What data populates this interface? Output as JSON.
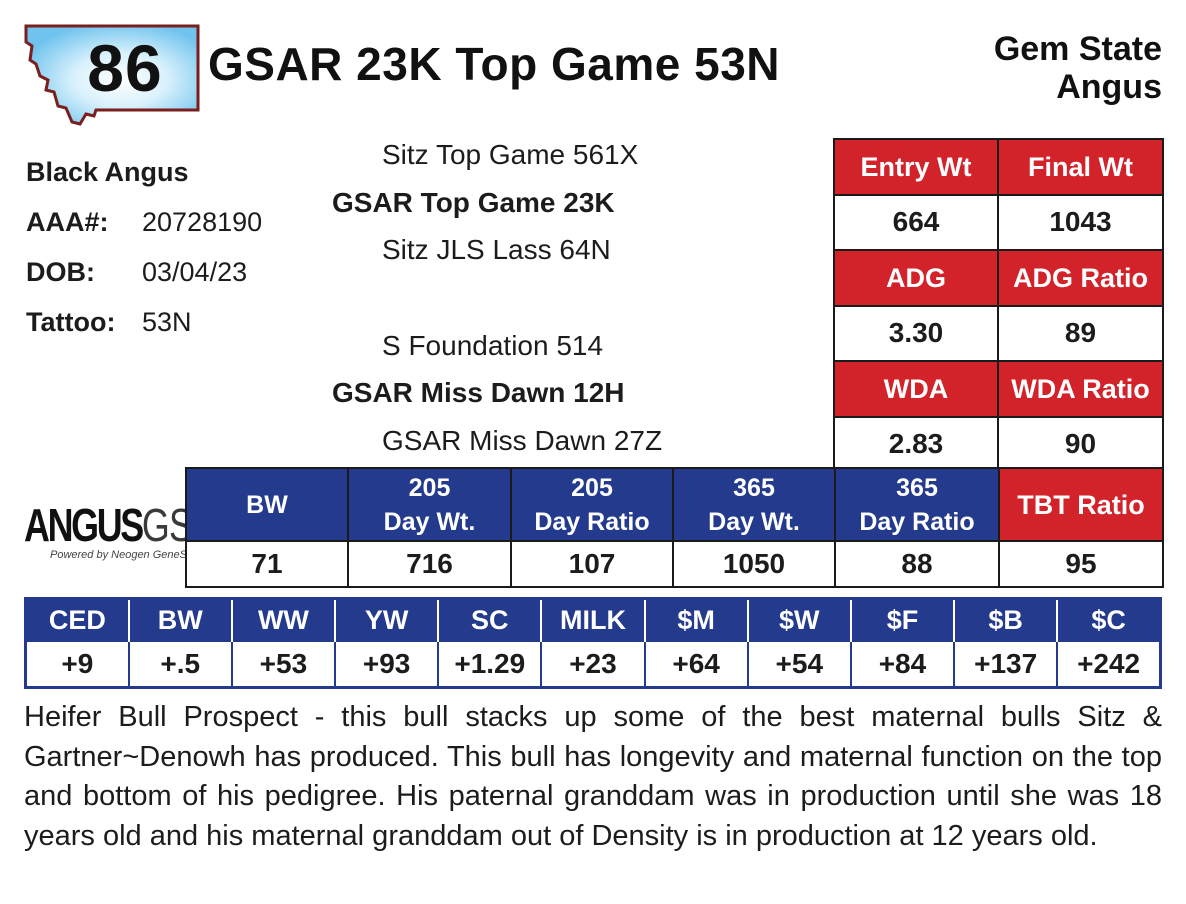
{
  "lot_number": "86",
  "animal_name": "GSAR 23K Top Game 53N",
  "breeder": [
    "Gem State",
    "Angus"
  ],
  "info": {
    "breed": "Black Angus",
    "aaa_label": "AAA#:",
    "aaa_value": "20728190",
    "dob_label": "DOB:",
    "dob_value": "03/04/23",
    "tattoo_label": "Tattoo:",
    "tattoo_value": "53N"
  },
  "pedigree": {
    "sire_sire": "Sitz Top Game 561X",
    "sire": "GSAR Top Game 23K",
    "sire_dam": "Sitz JLS Lass 64N",
    "dam_sire": "S Foundation 514",
    "dam": "GSAR Miss Dawn 12H",
    "dam_dam": "GSAR Miss Dawn 27Z"
  },
  "weights": {
    "entry_wt_label": "Entry Wt",
    "entry_wt": "664",
    "final_wt_label": "Final Wt",
    "final_wt": "1043",
    "adg_label": "ADG",
    "adg": "3.30",
    "adg_ratio_label": "ADG Ratio",
    "adg_ratio": "89",
    "wda_label": "WDA",
    "wda": "2.83",
    "wda_ratio_label": "WDA Ratio",
    "wda_ratio": "90"
  },
  "performance": {
    "headers": [
      {
        "line1": "BW",
        "line2": ""
      },
      {
        "line1": "205",
        "line2": "Day Wt."
      },
      {
        "line1": "205",
        "line2": "Day Ratio"
      },
      {
        "line1": "365",
        "line2": "Day Wt."
      },
      {
        "line1": "365",
        "line2": "Day Ratio"
      },
      {
        "line1": "TBT Ratio",
        "line2": ""
      }
    ],
    "values": [
      "71",
      "716",
      "107",
      "1050",
      "88",
      "95"
    ]
  },
  "logo": {
    "main": "ANGUS",
    "suffix": "GS",
    "tagline": "Powered by Neogen GeneSeek"
  },
  "epds": {
    "headers": [
      "CED",
      "BW",
      "WW",
      "YW",
      "SC",
      "MILK",
      "$M",
      "$W",
      "$F",
      "$B",
      "$C"
    ],
    "values": [
      "+9",
      "+.5",
      "+53",
      "+93",
      "+1.29",
      "+23",
      "+64",
      "+54",
      "+84",
      "+137",
      "+242"
    ]
  },
  "comments": "Heifer Bull Prospect - this bull stacks up some of the best maternal bulls Sitz & Gartner~Denowh has produced. This bull has longevity and maternal function on the top and bottom of his pedigree. His paternal granddam was in production until she was 18 years old and his maternal granddam out of Density is in production at 12 years old.",
  "colors": {
    "red": "#d2232a",
    "blue": "#233a8d",
    "badge_border": "#7a1e1e",
    "badge_glow": "#6fc3ee"
  }
}
